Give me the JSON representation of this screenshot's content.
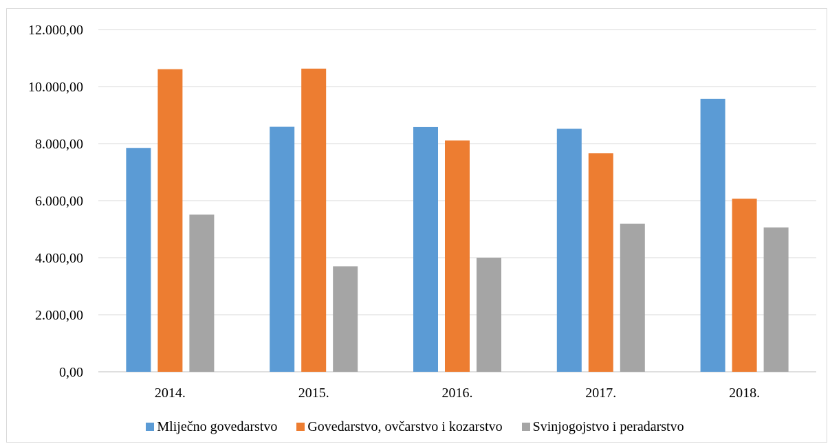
{
  "chart_data": {
    "type": "bar",
    "categories": [
      "2014.",
      "2015.",
      "2016.",
      "2017.",
      "2018."
    ],
    "series": [
      {
        "name": "Mliječno govedarstvo",
        "color": "#5b9bd5",
        "values": [
          7850,
          8590,
          8580,
          8520,
          9570
        ]
      },
      {
        "name": "Govedarstvo, ovčarstvo i kozarstvo",
        "color": "#ed7d31",
        "values": [
          10610,
          10630,
          8110,
          7660,
          6070
        ]
      },
      {
        "name": "Svinjogojstvo i peradarstvo",
        "color": "#a5a5a5",
        "values": [
          5510,
          3700,
          4000,
          5190,
          5060
        ]
      }
    ],
    "yticks": [
      "0,00",
      "2.000,00",
      "4.000,00",
      "6.000,00",
      "8.000,00",
      "10.000,00",
      "12.000,00"
    ],
    "ylim": [
      0,
      12000
    ],
    "grid": true,
    "legend_position": "bottom",
    "title": "",
    "xlabel": "",
    "ylabel": ""
  }
}
